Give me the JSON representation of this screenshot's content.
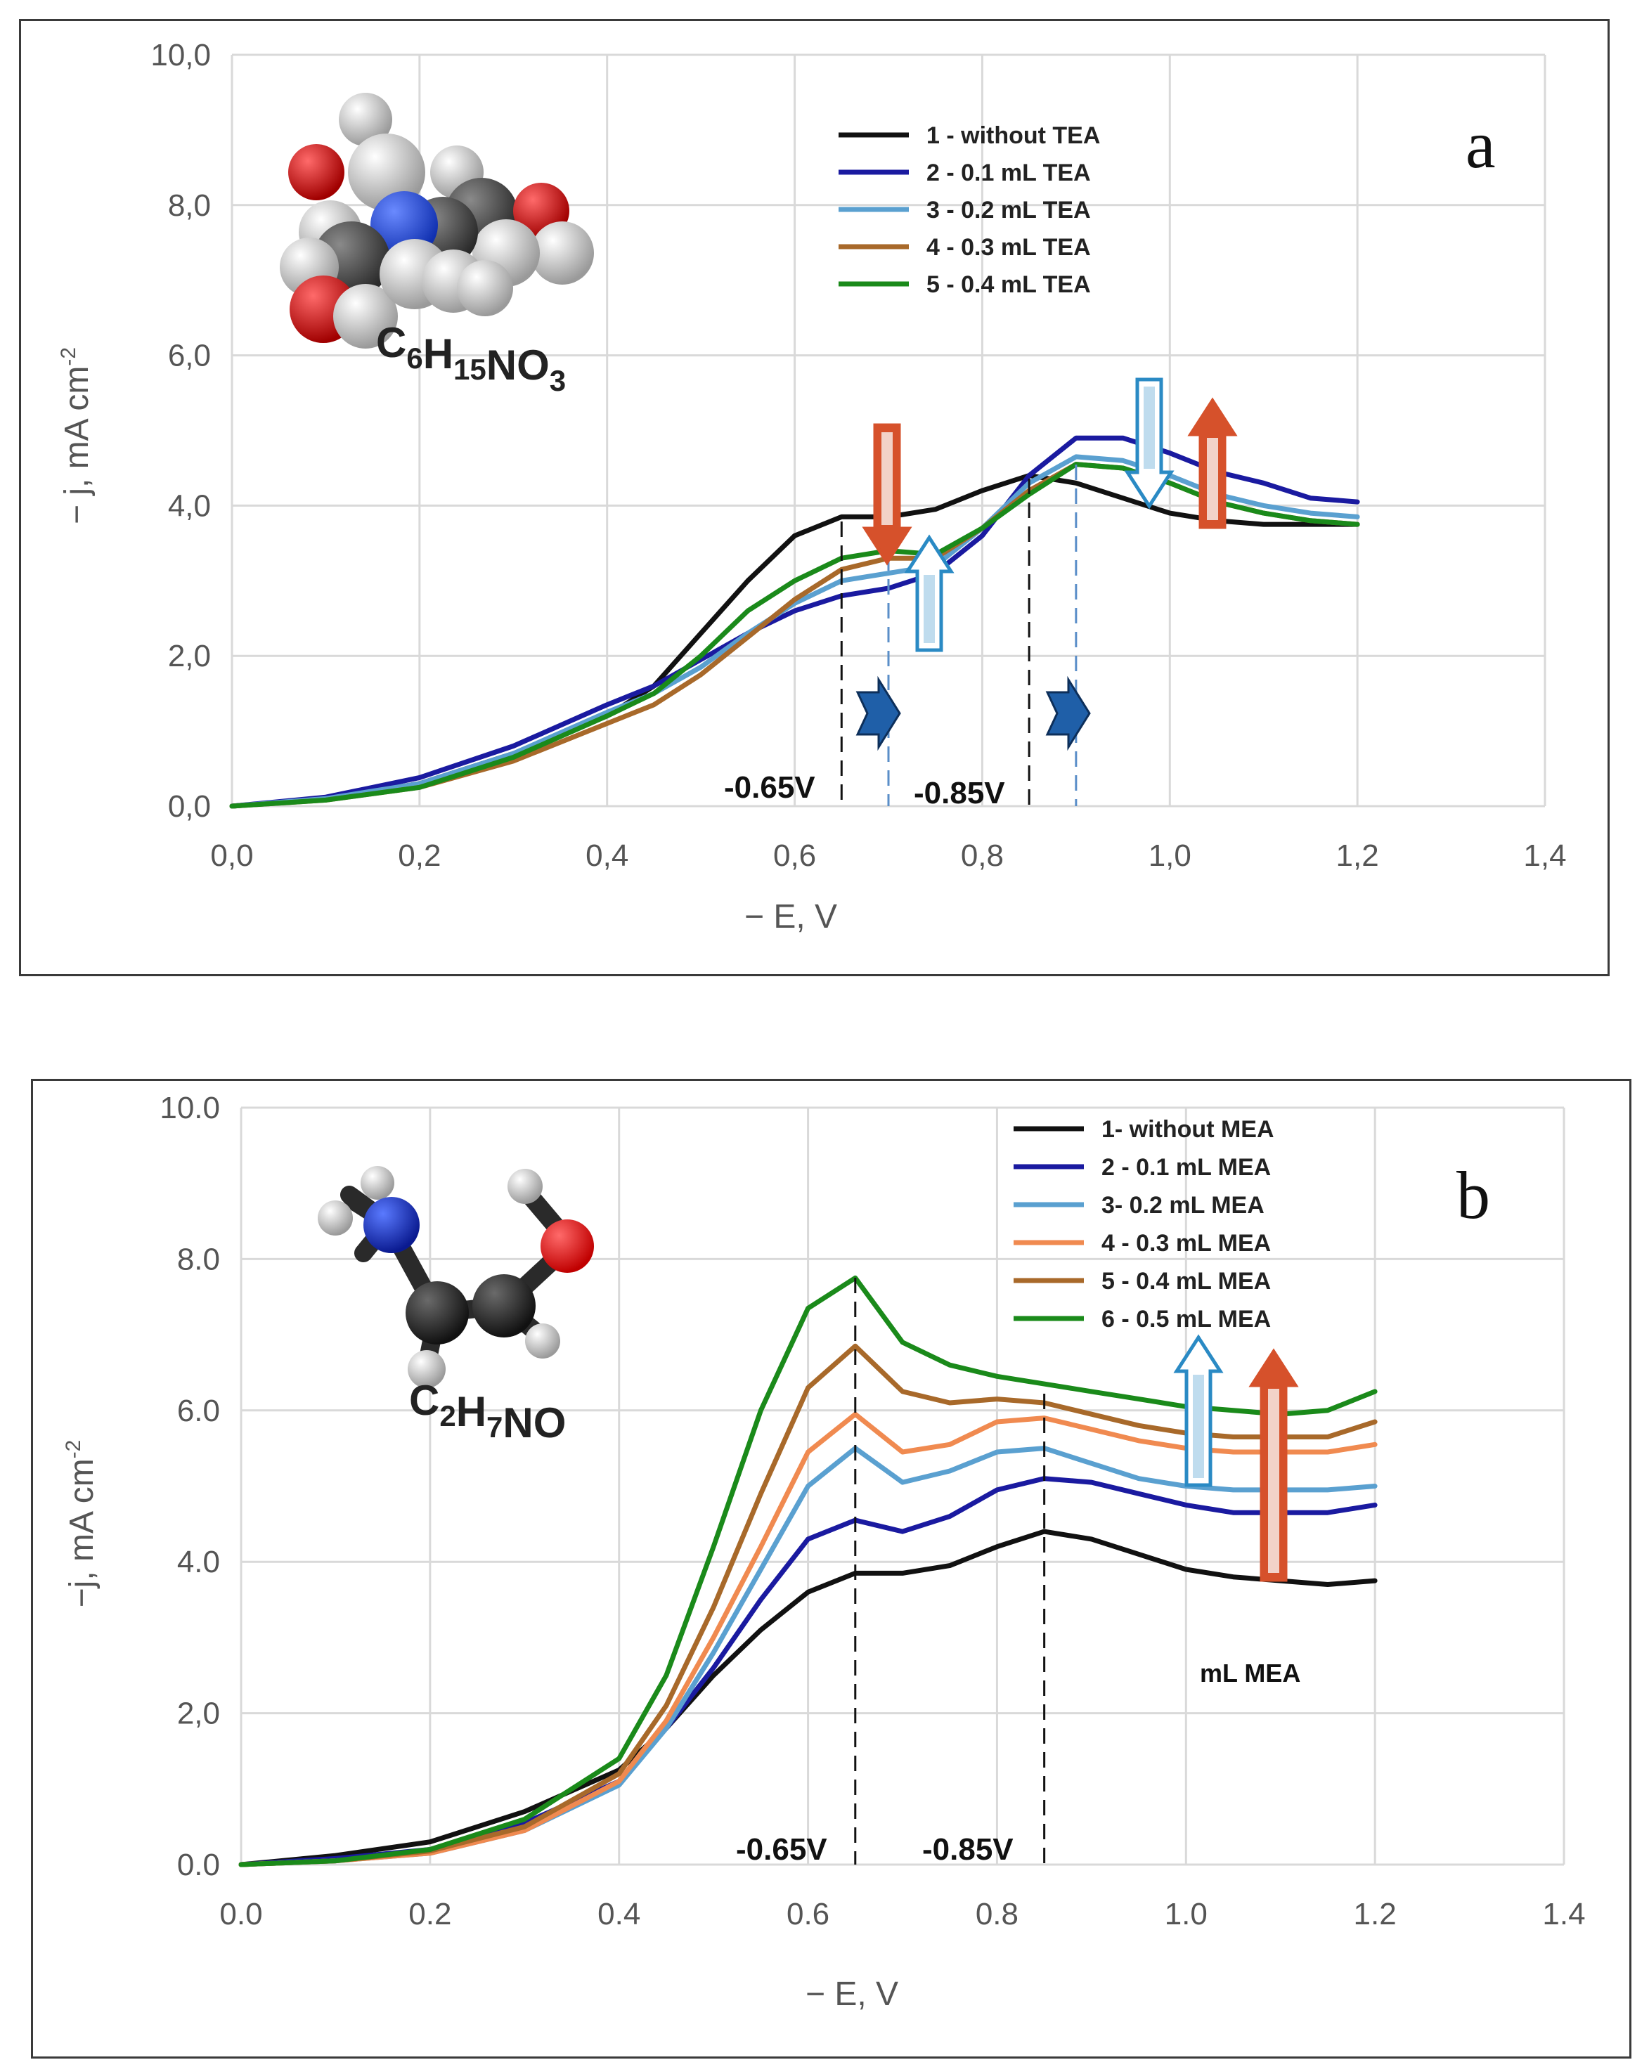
{
  "chart_data": [
    {
      "type": "line",
      "panel_label": "a",
      "formula": {
        "main": "C",
        "parts": [
          [
            "C",
            "6"
          ],
          [
            "H",
            "15"
          ],
          [
            "NO",
            "3"
          ]
        ]
      },
      "xlabel": "− E, V",
      "ylabel": "− j, mA cm",
      "ylabel_sup": "-2",
      "xlim": [
        0,
        1.4
      ],
      "ylim": [
        0,
        10
      ],
      "xticks": [
        "0,0",
        "0,2",
        "0,4",
        "0,6",
        "0,8",
        "1,0",
        "1,2",
        "1,4"
      ],
      "yticks": [
        "0,0",
        "2,0",
        "4,0",
        "6,0",
        "8,0",
        "10,0"
      ],
      "markers": [
        {
          "label": "-0.65V",
          "x_from": 0.65,
          "x_to": 0.7
        },
        {
          "label": "-0.85V",
          "x_from": 0.85,
          "x_to": 0.9
        }
      ],
      "series": [
        {
          "name": "1 - without TEA",
          "color": "#111111",
          "x": [
            0,
            0.1,
            0.2,
            0.3,
            0.4,
            0.45,
            0.5,
            0.55,
            0.6,
            0.65,
            0.7,
            0.75,
            0.8,
            0.85,
            0.9,
            0.95,
            1.0,
            1.05,
            1.1,
            1.15,
            1.2
          ],
          "y": [
            0,
            0.1,
            0.3,
            0.7,
            1.2,
            1.6,
            2.3,
            3.0,
            3.6,
            3.85,
            3.85,
            3.95,
            4.2,
            4.4,
            4.3,
            4.1,
            3.9,
            3.8,
            3.75,
            3.75,
            3.75
          ]
        },
        {
          "name": "2 - 0.1 mL TEA",
          "color": "#1a1aa0",
          "x": [
            0,
            0.1,
            0.2,
            0.3,
            0.4,
            0.45,
            0.5,
            0.55,
            0.6,
            0.65,
            0.7,
            0.75,
            0.8,
            0.85,
            0.9,
            0.95,
            1.0,
            1.05,
            1.1,
            1.15,
            1.2
          ],
          "y": [
            0,
            0.12,
            0.38,
            0.8,
            1.35,
            1.6,
            1.95,
            2.3,
            2.6,
            2.8,
            2.9,
            3.1,
            3.6,
            4.4,
            4.9,
            4.9,
            4.7,
            4.45,
            4.3,
            4.1,
            4.05
          ]
        },
        {
          "name": "3 - 0.2 mL TEA",
          "color": "#5aa0d0",
          "x": [
            0,
            0.1,
            0.2,
            0.3,
            0.4,
            0.45,
            0.5,
            0.55,
            0.6,
            0.65,
            0.7,
            0.75,
            0.8,
            0.85,
            0.9,
            0.95,
            1.0,
            1.05,
            1.1,
            1.15,
            1.2
          ],
          "y": [
            0,
            0.1,
            0.3,
            0.7,
            1.25,
            1.5,
            1.85,
            2.3,
            2.7,
            3.0,
            3.1,
            3.2,
            3.7,
            4.3,
            4.65,
            4.6,
            4.4,
            4.15,
            4.0,
            3.9,
            3.85
          ]
        },
        {
          "name": "4 - 0.3 mL TEA",
          "color": "#a8692a",
          "x": [
            0,
            0.1,
            0.2,
            0.3,
            0.4,
            0.45,
            0.5,
            0.55,
            0.6,
            0.65,
            0.7,
            0.75,
            0.8,
            0.85,
            0.9,
            0.95,
            1.0,
            1.05,
            1.1,
            1.15,
            1.2
          ],
          "y": [
            0,
            0.08,
            0.25,
            0.6,
            1.1,
            1.35,
            1.75,
            2.25,
            2.75,
            3.15,
            3.3,
            3.3,
            3.7,
            4.2,
            4.55,
            4.5,
            4.3,
            4.05,
            3.9,
            3.8,
            3.75
          ]
        },
        {
          "name": "5 - 0.4 mL TEA",
          "color": "#1a8a1a",
          "x": [
            0,
            0.1,
            0.2,
            0.3,
            0.4,
            0.45,
            0.5,
            0.55,
            0.6,
            0.65,
            0.7,
            0.75,
            0.8,
            0.85,
            0.9,
            0.95,
            1.0,
            1.05,
            1.1,
            1.15,
            1.2
          ],
          "y": [
            0,
            0.08,
            0.25,
            0.65,
            1.2,
            1.5,
            2.0,
            2.6,
            3.0,
            3.3,
            3.4,
            3.35,
            3.7,
            4.15,
            4.55,
            4.5,
            4.3,
            4.05,
            3.9,
            3.8,
            3.75
          ]
        }
      ]
    },
    {
      "type": "line",
      "panel_label": "b",
      "formula": {
        "main": "C",
        "parts": [
          [
            "C",
            "2"
          ],
          [
            "H",
            "7"
          ],
          [
            "NO",
            ""
          ]
        ]
      },
      "xlabel": "− E, V",
      "ylabel": "−j, mA cm",
      "ylabel_sup": "-2",
      "xlim": [
        0,
        1.4
      ],
      "ylim": [
        0,
        10
      ],
      "xticks": [
        "0.0",
        "0.2",
        "0.4",
        "0.6",
        "0.8",
        "1.0",
        "1.2",
        "1.4"
      ],
      "yticks": [
        "0.0",
        "2,0",
        "4.0",
        "6.0",
        "8.0",
        "10.0"
      ],
      "note": "mL MEA",
      "markers": [
        {
          "label": "-0.65V",
          "x_from": 0.65,
          "x_to": 0.65
        },
        {
          "label": "-0.85V",
          "x_from": 0.85,
          "x_to": 0.85
        }
      ],
      "series": [
        {
          "name": "1- without MEA",
          "color": "#111111",
          "x": [
            0,
            0.1,
            0.2,
            0.3,
            0.4,
            0.45,
            0.5,
            0.55,
            0.6,
            0.65,
            0.7,
            0.75,
            0.8,
            0.85,
            0.9,
            0.95,
            1.0,
            1.05,
            1.1,
            1.15,
            1.2
          ],
          "y": [
            0,
            0.12,
            0.3,
            0.7,
            1.25,
            1.8,
            2.5,
            3.1,
            3.6,
            3.85,
            3.85,
            3.95,
            4.2,
            4.4,
            4.3,
            4.1,
            3.9,
            3.8,
            3.75,
            3.7,
            3.75
          ]
        },
        {
          "name": "2 - 0.1 mL MEA",
          "color": "#1a1aa0",
          "x": [
            0,
            0.1,
            0.2,
            0.3,
            0.4,
            0.45,
            0.5,
            0.55,
            0.6,
            0.65,
            0.7,
            0.75,
            0.8,
            0.85,
            0.9,
            0.95,
            1.0,
            1.05,
            1.1,
            1.15,
            1.2
          ],
          "y": [
            0,
            0.08,
            0.2,
            0.55,
            1.1,
            1.8,
            2.6,
            3.5,
            4.3,
            4.55,
            4.4,
            4.6,
            4.95,
            5.1,
            5.05,
            4.9,
            4.75,
            4.65,
            4.65,
            4.65,
            4.75
          ]
        },
        {
          "name": "3- 0.2  mL MEA",
          "color": "#5aa0d0",
          "x": [
            0,
            0.1,
            0.2,
            0.3,
            0.4,
            0.45,
            0.5,
            0.55,
            0.6,
            0.65,
            0.7,
            0.75,
            0.8,
            0.85,
            0.9,
            0.95,
            1.0,
            1.05,
            1.1,
            1.15,
            1.2
          ],
          "y": [
            0,
            0.05,
            0.15,
            0.45,
            1.05,
            1.8,
            2.8,
            3.9,
            5.0,
            5.5,
            5.05,
            5.2,
            5.45,
            5.5,
            5.3,
            5.1,
            5.0,
            4.95,
            4.95,
            4.95,
            5.0
          ]
        },
        {
          "name": "4 - 0.3 mL MEA",
          "color": "#f08a50",
          "x": [
            0,
            0.1,
            0.2,
            0.3,
            0.4,
            0.45,
            0.5,
            0.55,
            0.6,
            0.65,
            0.7,
            0.75,
            0.8,
            0.85,
            0.9,
            0.95,
            1.0,
            1.05,
            1.1,
            1.15,
            1.2
          ],
          "y": [
            0,
            0.05,
            0.15,
            0.45,
            1.1,
            1.9,
            3.0,
            4.2,
            5.45,
            5.95,
            5.45,
            5.55,
            5.85,
            5.9,
            5.75,
            5.6,
            5.5,
            5.45,
            5.45,
            5.45,
            5.55
          ]
        },
        {
          "name": "5 - 0.4 mL MEA",
          "color": "#a8692a",
          "x": [
            0,
            0.1,
            0.2,
            0.3,
            0.4,
            0.45,
            0.5,
            0.55,
            0.6,
            0.65,
            0.7,
            0.75,
            0.8,
            0.85,
            0.9,
            0.95,
            1.0,
            1.05,
            1.1,
            1.15,
            1.2
          ],
          "y": [
            0,
            0.05,
            0.18,
            0.5,
            1.2,
            2.1,
            3.4,
            4.9,
            6.3,
            6.85,
            6.25,
            6.1,
            6.15,
            6.1,
            5.95,
            5.8,
            5.7,
            5.65,
            5.65,
            5.65,
            5.85
          ]
        },
        {
          "name": "6 - 0.5 mL MEA",
          "color": "#1a8a1a",
          "x": [
            0,
            0.1,
            0.2,
            0.3,
            0.4,
            0.45,
            0.5,
            0.55,
            0.6,
            0.65,
            0.7,
            0.75,
            0.8,
            0.85,
            0.9,
            0.95,
            1.0,
            1.05,
            1.1,
            1.15,
            1.2
          ],
          "y": [
            0,
            0.05,
            0.2,
            0.6,
            1.4,
            2.5,
            4.2,
            6.0,
            7.35,
            7.75,
            6.9,
            6.6,
            6.45,
            6.35,
            6.25,
            6.15,
            6.05,
            6.0,
            5.95,
            6.0,
            6.25
          ]
        }
      ]
    }
  ]
}
